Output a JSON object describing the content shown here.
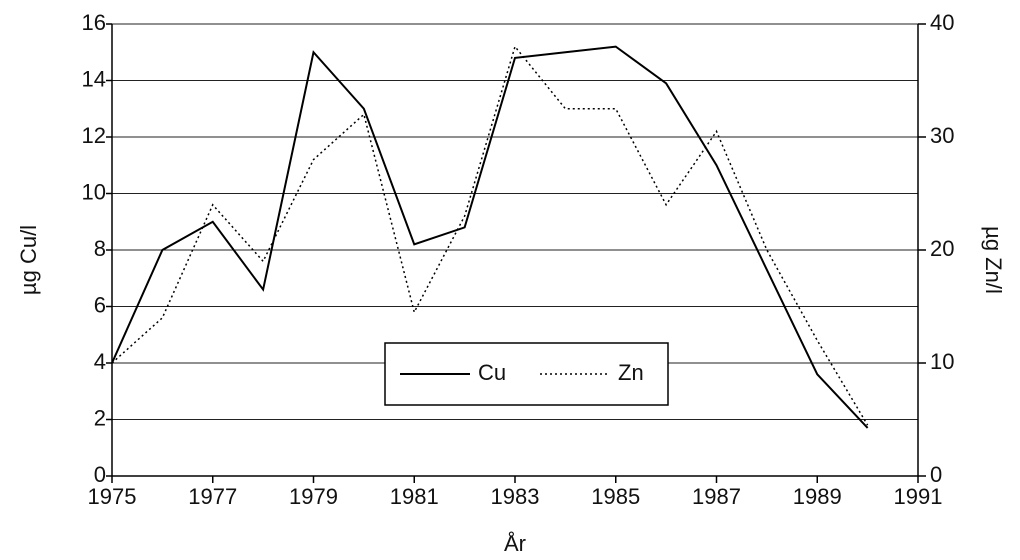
{
  "chart_data": {
    "type": "line",
    "xlabel": "År",
    "ylabel": "µg Cu/l",
    "y2label": "µg Zn/l",
    "x": [
      1975,
      1976,
      1977,
      1978,
      1979,
      1980,
      1981,
      1982,
      1983,
      1984,
      1985,
      1986,
      1987,
      1988,
      1989,
      1990
    ],
    "series": [
      {
        "name": "Cu",
        "color": "#000000",
        "axis": "y",
        "dash": false,
        "values": [
          4,
          8,
          9,
          6.6,
          15,
          13,
          8.2,
          8.8,
          14.8,
          15,
          15.2,
          13.9,
          11,
          7.3,
          3.6,
          1.7
        ]
      },
      {
        "name": "Zn",
        "color": "#000000",
        "axis": "y2",
        "dash": true,
        "values": [
          10,
          14,
          24,
          19,
          28,
          32,
          14.5,
          23,
          38,
          32.5,
          32.5,
          24,
          30.5,
          20,
          12,
          4.5
        ]
      }
    ],
    "xlim": [
      1975,
      1991
    ],
    "xticks": [
      1975,
      1977,
      1979,
      1981,
      1983,
      1985,
      1987,
      1989,
      1991
    ],
    "ylim": [
      0,
      16
    ],
    "yticks": [
      0,
      2,
      4,
      6,
      8,
      10,
      12,
      14,
      16
    ],
    "y2lim": [
      0,
      40
    ],
    "y2ticks": [
      0,
      10,
      20,
      30,
      40
    ],
    "grid": true,
    "legend": "bottom center"
  }
}
